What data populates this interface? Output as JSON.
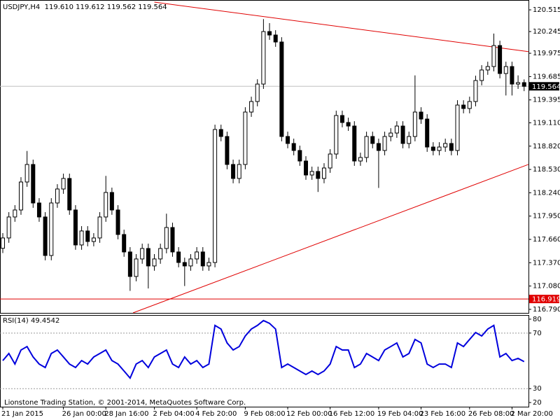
{
  "footer": "Lionstone Trading Station, © 2001-2014, MetaQuotes Software Corp.",
  "chart_data": [
    {
      "type": "candlestick",
      "title": "USDJPY,H4  119.610 119.612 119.562 119.564",
      "categories": [
        "21 Jan 2015",
        null,
        null,
        null,
        null,
        null,
        null,
        null,
        null,
        null,
        "26 Jan 00:00",
        null,
        null,
        null,
        null,
        null,
        null,
        "28 Jan 16:00",
        null,
        null,
        null,
        null,
        null,
        null,
        null,
        "2 Feb 04:00",
        null,
        null,
        null,
        null,
        null,
        null,
        "4 Feb 20:00",
        null,
        null,
        null,
        null,
        null,
        null,
        null,
        "9 Feb 08:00",
        null,
        null,
        null,
        null,
        null,
        null,
        "12 Feb 00:00",
        null,
        null,
        null,
        null,
        null,
        null,
        "16 Feb 12:00",
        null,
        null,
        null,
        null,
        null,
        null,
        null,
        "19 Feb 04:00",
        null,
        null,
        null,
        null,
        null,
        null,
        "23 Feb 16:00",
        null,
        null,
        null,
        null,
        null,
        null,
        null,
        "26 Feb 08:00",
        null,
        null,
        null,
        null,
        null,
        null,
        "2 Mar 20:00",
        null,
        null
      ],
      "open": [
        117.55,
        117.678,
        117.939,
        118.026,
        118.374,
        118.592,
        118.113,
        117.939,
        117.46,
        118.113,
        118.287,
        118.418,
        118.026,
        117.591,
        117.765,
        117.634,
        117.678,
        117.939,
        118.244,
        118.026,
        117.721,
        117.504,
        117.199,
        117.417,
        117.547,
        117.33,
        117.417,
        117.547,
        117.808,
        117.504,
        117.373,
        117.33,
        117.417,
        117.504,
        117.33,
        117.373,
        119.027,
        118.94,
        118.592,
        118.418,
        118.592,
        119.244,
        119.375,
        119.592,
        120.245,
        120.202,
        120.115,
        118.94,
        118.853,
        118.766,
        118.635,
        118.461,
        118.505,
        118.418,
        118.548,
        118.722,
        119.201,
        119.114,
        119.07,
        118.635,
        118.679,
        118.94,
        118.853,
        118.766,
        118.94,
        118.983,
        119.07,
        118.853,
        118.94,
        119.244,
        119.157,
        118.809,
        118.766,
        118.809,
        118.853,
        118.766,
        119.331,
        119.288,
        119.375,
        119.636,
        119.767,
        119.81,
        120.071,
        119.723,
        119.81,
        119.592,
        119.61
      ],
      "high": [
        117.738,
        117.999,
        118.086,
        118.434,
        118.76,
        118.652,
        118.173,
        117.999,
        118.173,
        118.347,
        118.478,
        118.478,
        118.086,
        117.825,
        117.825,
        117.738,
        117.999,
        118.45,
        118.304,
        118.086,
        117.781,
        117.564,
        117.477,
        117.607,
        117.607,
        117.477,
        117.607,
        117.98,
        117.868,
        117.564,
        117.433,
        117.477,
        117.564,
        117.564,
        117.433,
        119.087,
        119.087,
        119.0,
        118.652,
        118.652,
        119.304,
        119.435,
        119.652,
        120.4,
        120.35,
        120.262,
        120.175,
        119.0,
        118.913,
        118.826,
        118.695,
        118.565,
        118.565,
        118.608,
        118.782,
        119.261,
        119.261,
        119.174,
        119.13,
        118.739,
        119.0,
        119.0,
        118.913,
        119.0,
        119.043,
        119.13,
        119.13,
        119.0,
        119.7,
        119.304,
        119.217,
        118.869,
        118.869,
        118.913,
        118.913,
        119.391,
        119.391,
        119.435,
        119.696,
        119.827,
        119.87,
        120.22,
        120.131,
        119.87,
        119.87,
        119.7,
        119.65
      ],
      "low": [
        117.49,
        117.618,
        117.879,
        117.966,
        118.314,
        118.053,
        117.879,
        117.4,
        117.4,
        118.053,
        118.227,
        117.966,
        117.531,
        117.531,
        117.574,
        117.574,
        117.618,
        117.879,
        117.966,
        117.661,
        117.444,
        117.02,
        117.139,
        117.357,
        117.05,
        117.27,
        117.357,
        117.487,
        117.444,
        117.313,
        117.08,
        117.27,
        117.357,
        117.27,
        117.27,
        117.313,
        118.88,
        118.532,
        118.358,
        118.358,
        118.532,
        119.184,
        119.315,
        119.532,
        120.142,
        120.055,
        118.88,
        118.793,
        118.706,
        118.575,
        118.401,
        118.401,
        118.25,
        118.358,
        118.488,
        118.662,
        119.054,
        119.01,
        118.575,
        118.575,
        118.619,
        118.793,
        118.3,
        118.706,
        118.88,
        118.923,
        118.793,
        118.793,
        118.88,
        119.097,
        118.749,
        118.706,
        118.706,
        118.749,
        118.706,
        118.706,
        119.228,
        119.228,
        119.315,
        119.576,
        119.707,
        119.75,
        119.663,
        119.45,
        119.45,
        119.532,
        119.504
      ],
      "close": [
        117.678,
        117.939,
        118.026,
        118.374,
        118.592,
        118.113,
        117.939,
        117.46,
        118.113,
        118.287,
        118.418,
        118.026,
        117.591,
        117.765,
        117.634,
        117.678,
        117.939,
        118.244,
        118.026,
        117.721,
        117.504,
        117.199,
        117.417,
        117.547,
        117.33,
        117.417,
        117.547,
        117.808,
        117.504,
        117.373,
        117.33,
        117.417,
        117.504,
        117.33,
        117.373,
        119.027,
        118.94,
        118.592,
        118.418,
        118.592,
        119.244,
        119.375,
        119.592,
        120.245,
        120.202,
        120.115,
        118.94,
        118.853,
        118.766,
        118.635,
        118.461,
        118.505,
        118.418,
        118.548,
        118.722,
        119.201,
        119.114,
        119.07,
        118.635,
        118.679,
        118.94,
        118.853,
        118.766,
        118.94,
        118.983,
        119.07,
        118.853,
        118.94,
        119.244,
        119.157,
        118.809,
        118.766,
        118.809,
        118.853,
        118.766,
        119.331,
        119.288,
        119.375,
        119.636,
        119.767,
        119.81,
        120.071,
        119.723,
        119.81,
        119.592,
        119.61,
        119.564
      ],
      "up_color": "#ffffff",
      "down_color": "#000000",
      "ylim": [
        116.746,
        120.62
      ],
      "yticks": [
        120.515,
        120.245,
        {
          "value": 119.975,
          "label": "119.975"
        },
        119.685,
        119.395,
        {
          "value": 119.11,
          "label": "119.110"
        },
        {
          "value": 118.82,
          "label": "118.820"
        },
        {
          "value": 118.53,
          "label": "118.530"
        },
        {
          "value": 118.24,
          "label": "118.240"
        },
        {
          "value": 117.95,
          "label": "117.950"
        },
        {
          "value": 117.66,
          "label": "117.660"
        },
        {
          "value": 117.37,
          "label": "117.370"
        },
        {
          "value": 117.08,
          "label": "117.080"
        },
        {
          "value": 116.79,
          "label": "116.790"
        }
      ],
      "price_lines": [
        {
          "value": 119.564,
          "color": "#c0c0c0",
          "label_bg": "#000000"
        },
        {
          "value": 116.919,
          "color": "#e00000",
          "label_bg": "#e00000"
        }
      ],
      "trendlines": [
        {
          "x": [
            25,
            86.7
          ],
          "y": [
            120.611,
            119.995
          ],
          "color": "#e00000"
        },
        {
          "x": [
            21.5,
            86.7
          ],
          "y": [
            116.747,
            118.592
          ],
          "color": "#e00000"
        }
      ]
    },
    {
      "type": "line",
      "title": "RSI(14) 49.4542",
      "color": "#0000dd",
      "values": [
        50.2,
        55.3,
        47.7,
        57.8,
        60.3,
        52.8,
        47.7,
        45.2,
        55.3,
        57.8,
        52.8,
        47.7,
        45.2,
        50.2,
        47.7,
        52.8,
        55.3,
        57.8,
        50.2,
        47.7,
        42.7,
        37.6,
        47.7,
        50.2,
        45.2,
        52.8,
        55.3,
        57.8,
        47.7,
        45.2,
        52.8,
        47.7,
        50.2,
        45.2,
        47.7,
        75.5,
        72.9,
        62.9,
        57.8,
        60.3,
        67.9,
        72.9,
        75.5,
        79.0,
        77.0,
        72.9,
        45.2,
        47.7,
        45.2,
        42.7,
        40.2,
        42.7,
        40.2,
        42.7,
        47.7,
        60.3,
        57.8,
        57.8,
        45.2,
        47.7,
        55.3,
        52.8,
        50.2,
        57.8,
        60.3,
        62.9,
        52.8,
        55.3,
        65.4,
        62.9,
        47.7,
        45.2,
        47.7,
        47.7,
        45.2,
        62.9,
        60.3,
        65.4,
        70.4,
        67.9,
        72.9,
        75.5,
        52.8,
        55.3,
        50.2,
        51.8,
        49.4542
      ],
      "ylim": [
        17.5,
        82
      ],
      "yticks": [
        80,
        70,
        30,
        20
      ],
      "levels": [
        70,
        30
      ]
    }
  ]
}
